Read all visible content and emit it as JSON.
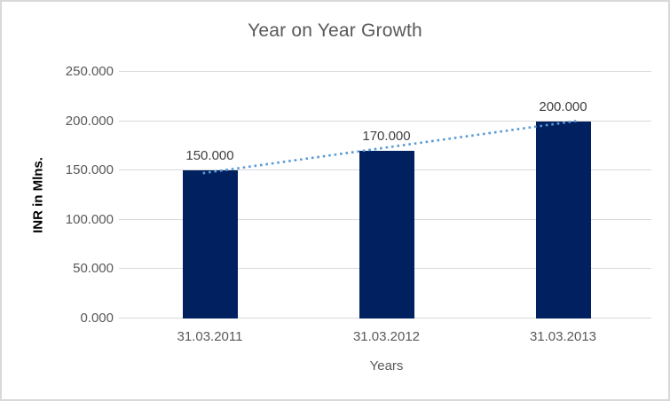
{
  "chart_data": {
    "type": "bar",
    "title": "Year on Year Growth",
    "categories": [
      "31.03.2011",
      "31.03.2012",
      "31.03.2013"
    ],
    "values": [
      150,
      170,
      200
    ],
    "data_labels": [
      "150.000",
      "170.000",
      "200.000"
    ],
    "xlabel": "Years",
    "ylabel": "INR in Mlns.",
    "ylim": [
      0,
      250
    ],
    "ytick_step": 50,
    "yticks": [
      "0.000",
      "50.000",
      "100.000",
      "150.000",
      "200.000",
      "250.000"
    ],
    "grid": "horizontal",
    "legend": "none",
    "trendline": {
      "type": "linear",
      "style": "dotted",
      "color": "#5B9BD5"
    },
    "colors": {
      "bar": "#002060",
      "gridline": "#D9D9D9",
      "title_text": "#595959",
      "tick_text": "#595959",
      "data_label_text": "#404040",
      "y_axis_title_text": "#000000",
      "x_axis_title_text": "#595959",
      "border": "#D9D9D9",
      "background": "#FFFFFF"
    }
  }
}
